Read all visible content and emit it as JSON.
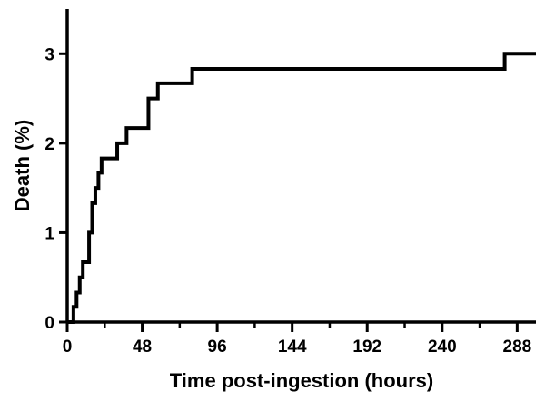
{
  "chart_data": {
    "type": "line",
    "line_style": "step",
    "title": "",
    "xlabel": "Time post-ingestion (hours)",
    "ylabel": "Death (%)",
    "xlim": [
      0,
      300
    ],
    "ylim": [
      0,
      3.5
    ],
    "x_ticks": [
      0,
      48,
      96,
      144,
      192,
      240,
      288
    ],
    "y_ticks": [
      0,
      1,
      2,
      3
    ],
    "grid": false,
    "legend": "none",
    "series": [
      {
        "color": "#000000",
        "x": [
          0,
          4,
          6,
          8,
          10,
          14,
          16,
          18,
          20,
          22,
          32,
          38,
          52,
          58,
          80,
          280,
          300
        ],
        "y": [
          0,
          0.17,
          0.33,
          0.5,
          0.67,
          1.0,
          1.33,
          1.5,
          1.67,
          1.83,
          2.0,
          2.17,
          2.5,
          2.67,
          2.83,
          3.0,
          3.0
        ]
      }
    ]
  }
}
